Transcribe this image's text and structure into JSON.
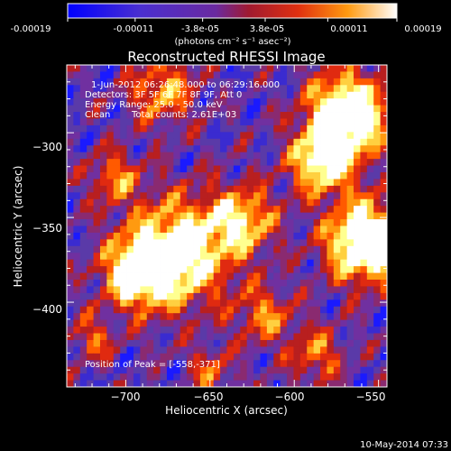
{
  "colorbar": {
    "tick_labels": [
      "-0.00019",
      "-0.00011",
      "-3.8e-05",
      "3.8e-05",
      "0.00011",
      "0.00019"
    ],
    "units_label": "(photons cm⁻² s⁻¹ asec⁻²)"
  },
  "title": "Reconstructed RHESSI Image",
  "annotations": {
    "time_range": "1-Jun-2012 06:26:48.000 to 06:29:16.000",
    "detectors": "Detectors: 3F 5F 6F 7F 8F 9F, Att 0",
    "energy_range": "Energy Range: 25.0 - 50.0 keV",
    "algorithm": "Clean",
    "total_counts": "Total counts: 2.61E+03",
    "peak": "Position of Peak = [-558,-371]"
  },
  "axes": {
    "xlabel": "Heliocentric X (arcsec)",
    "ylabel": "Heliocentric Y (arcsec)",
    "x_ticks": [
      {
        "label": "−700",
        "value": -700
      },
      {
        "label": "−650",
        "value": -650
      },
      {
        "label": "−600",
        "value": -600
      },
      {
        "label": "−550",
        "value": -550
      }
    ],
    "y_ticks": [
      {
        "label": "−300",
        "value": -300
      },
      {
        "label": "−350",
        "value": -350
      },
      {
        "label": "−400",
        "value": -400
      }
    ],
    "xlim": [
      -735,
      -545
    ],
    "ylim": [
      -450,
      -260
    ]
  },
  "footer_timestamp": "10-May-2014 07:33",
  "colors": {
    "background": "#000000",
    "foreground": "#ffffff",
    "colormap": [
      "#1a1aff",
      "#3a2bd0",
      "#5a3aa8",
      "#7030a0",
      "#8a2a70",
      "#b81f1f",
      "#e02a10",
      "#ff5a00",
      "#ff9a10",
      "#ffd040",
      "#ffff90",
      "#ffffff"
    ]
  }
}
